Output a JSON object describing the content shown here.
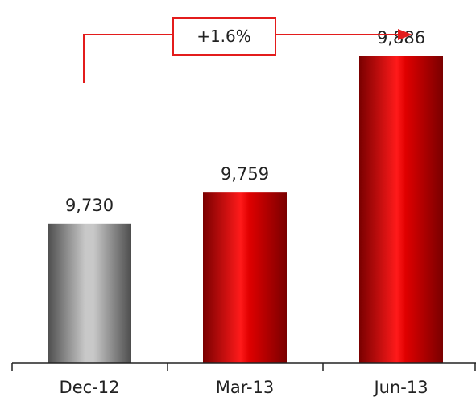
{
  "chart_data": {
    "type": "bar",
    "categories": [
      "Dec-12",
      "Mar-13",
      "Jun-13"
    ],
    "values": [
      9730,
      9759,
      9886
    ],
    "value_labels": [
      "9,730",
      "9,759",
      "9,886"
    ],
    "bar_styles": [
      "gray",
      "red",
      "red"
    ],
    "title": "",
    "xlabel": "",
    "ylabel": "",
    "ylim": [
      9600,
      9916
    ],
    "grid": false,
    "annotation": {
      "text": "+1.6%",
      "from": "Dec-12",
      "to": "Jun-13"
    },
    "colors": {
      "red_dark": "#7a0000",
      "red_mid": "#e00000",
      "red_light": "#ff1a1a",
      "gray_dark": "#4d4d4d",
      "gray_light": "#c8c8c8",
      "annotation": "#e31c1c",
      "axis": "#222222"
    }
  }
}
